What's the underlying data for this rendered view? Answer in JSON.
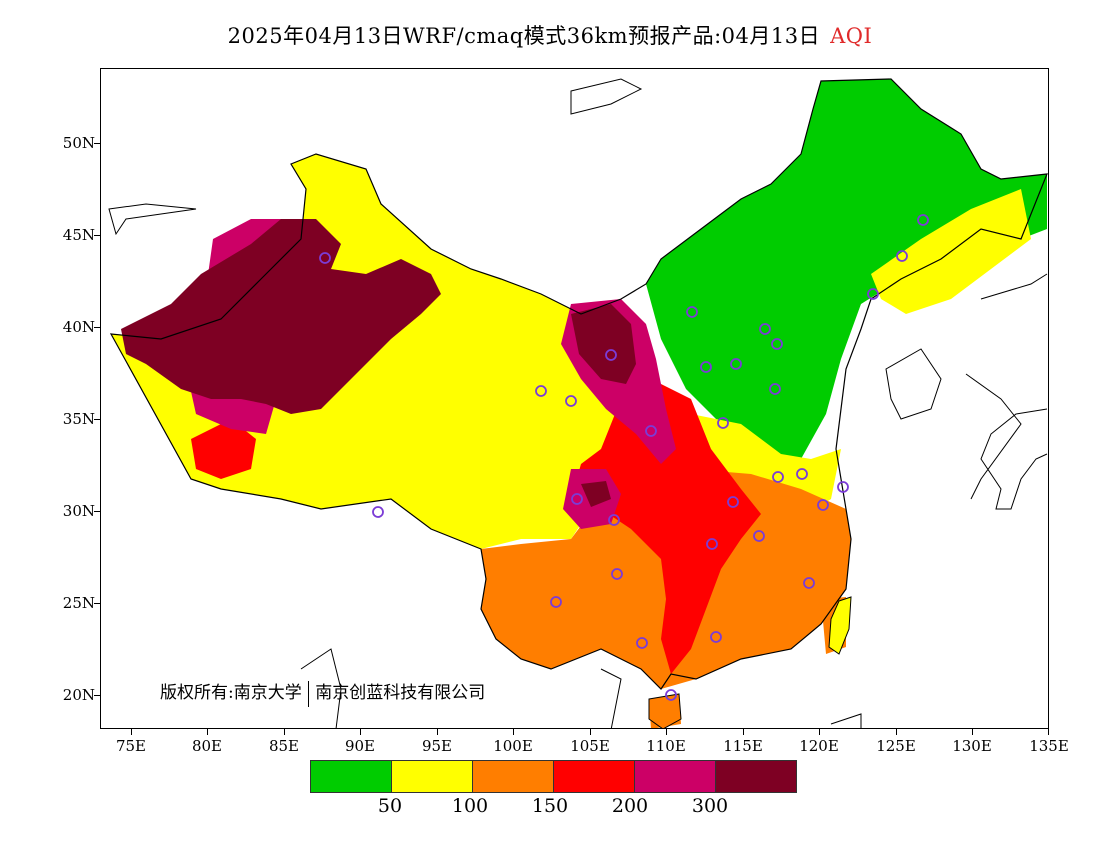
{
  "title": {
    "main": "2025年04月13日WRF/cmaq模式36km预报产品:04月13日",
    "variable": "AQI"
  },
  "axes": {
    "lat_ticks": [
      "50N",
      "45N",
      "40N",
      "35N",
      "30N",
      "25N",
      "20N"
    ],
    "lon_ticks": [
      "75E",
      "80E",
      "85E",
      "90E",
      "95E",
      "100E",
      "105E",
      "110E",
      "115E",
      "120E",
      "125E",
      "130E",
      "135E"
    ]
  },
  "copyright": {
    "left": "版权所有:南京大学",
    "right": "南京创蓝科技有限公司"
  },
  "legend": {
    "colors": [
      "#00cc00",
      "#ffff00",
      "#ff7e00",
      "#ff0000",
      "#cc0066",
      "#7e0023"
    ],
    "labels": [
      "50",
      "100",
      "150",
      "200",
      "300"
    ]
  },
  "map": {
    "region": "China",
    "lon_range": [
      73,
      135
    ],
    "lat_range": [
      18,
      54
    ],
    "station_marker_color": "#7b3cd6"
  }
}
